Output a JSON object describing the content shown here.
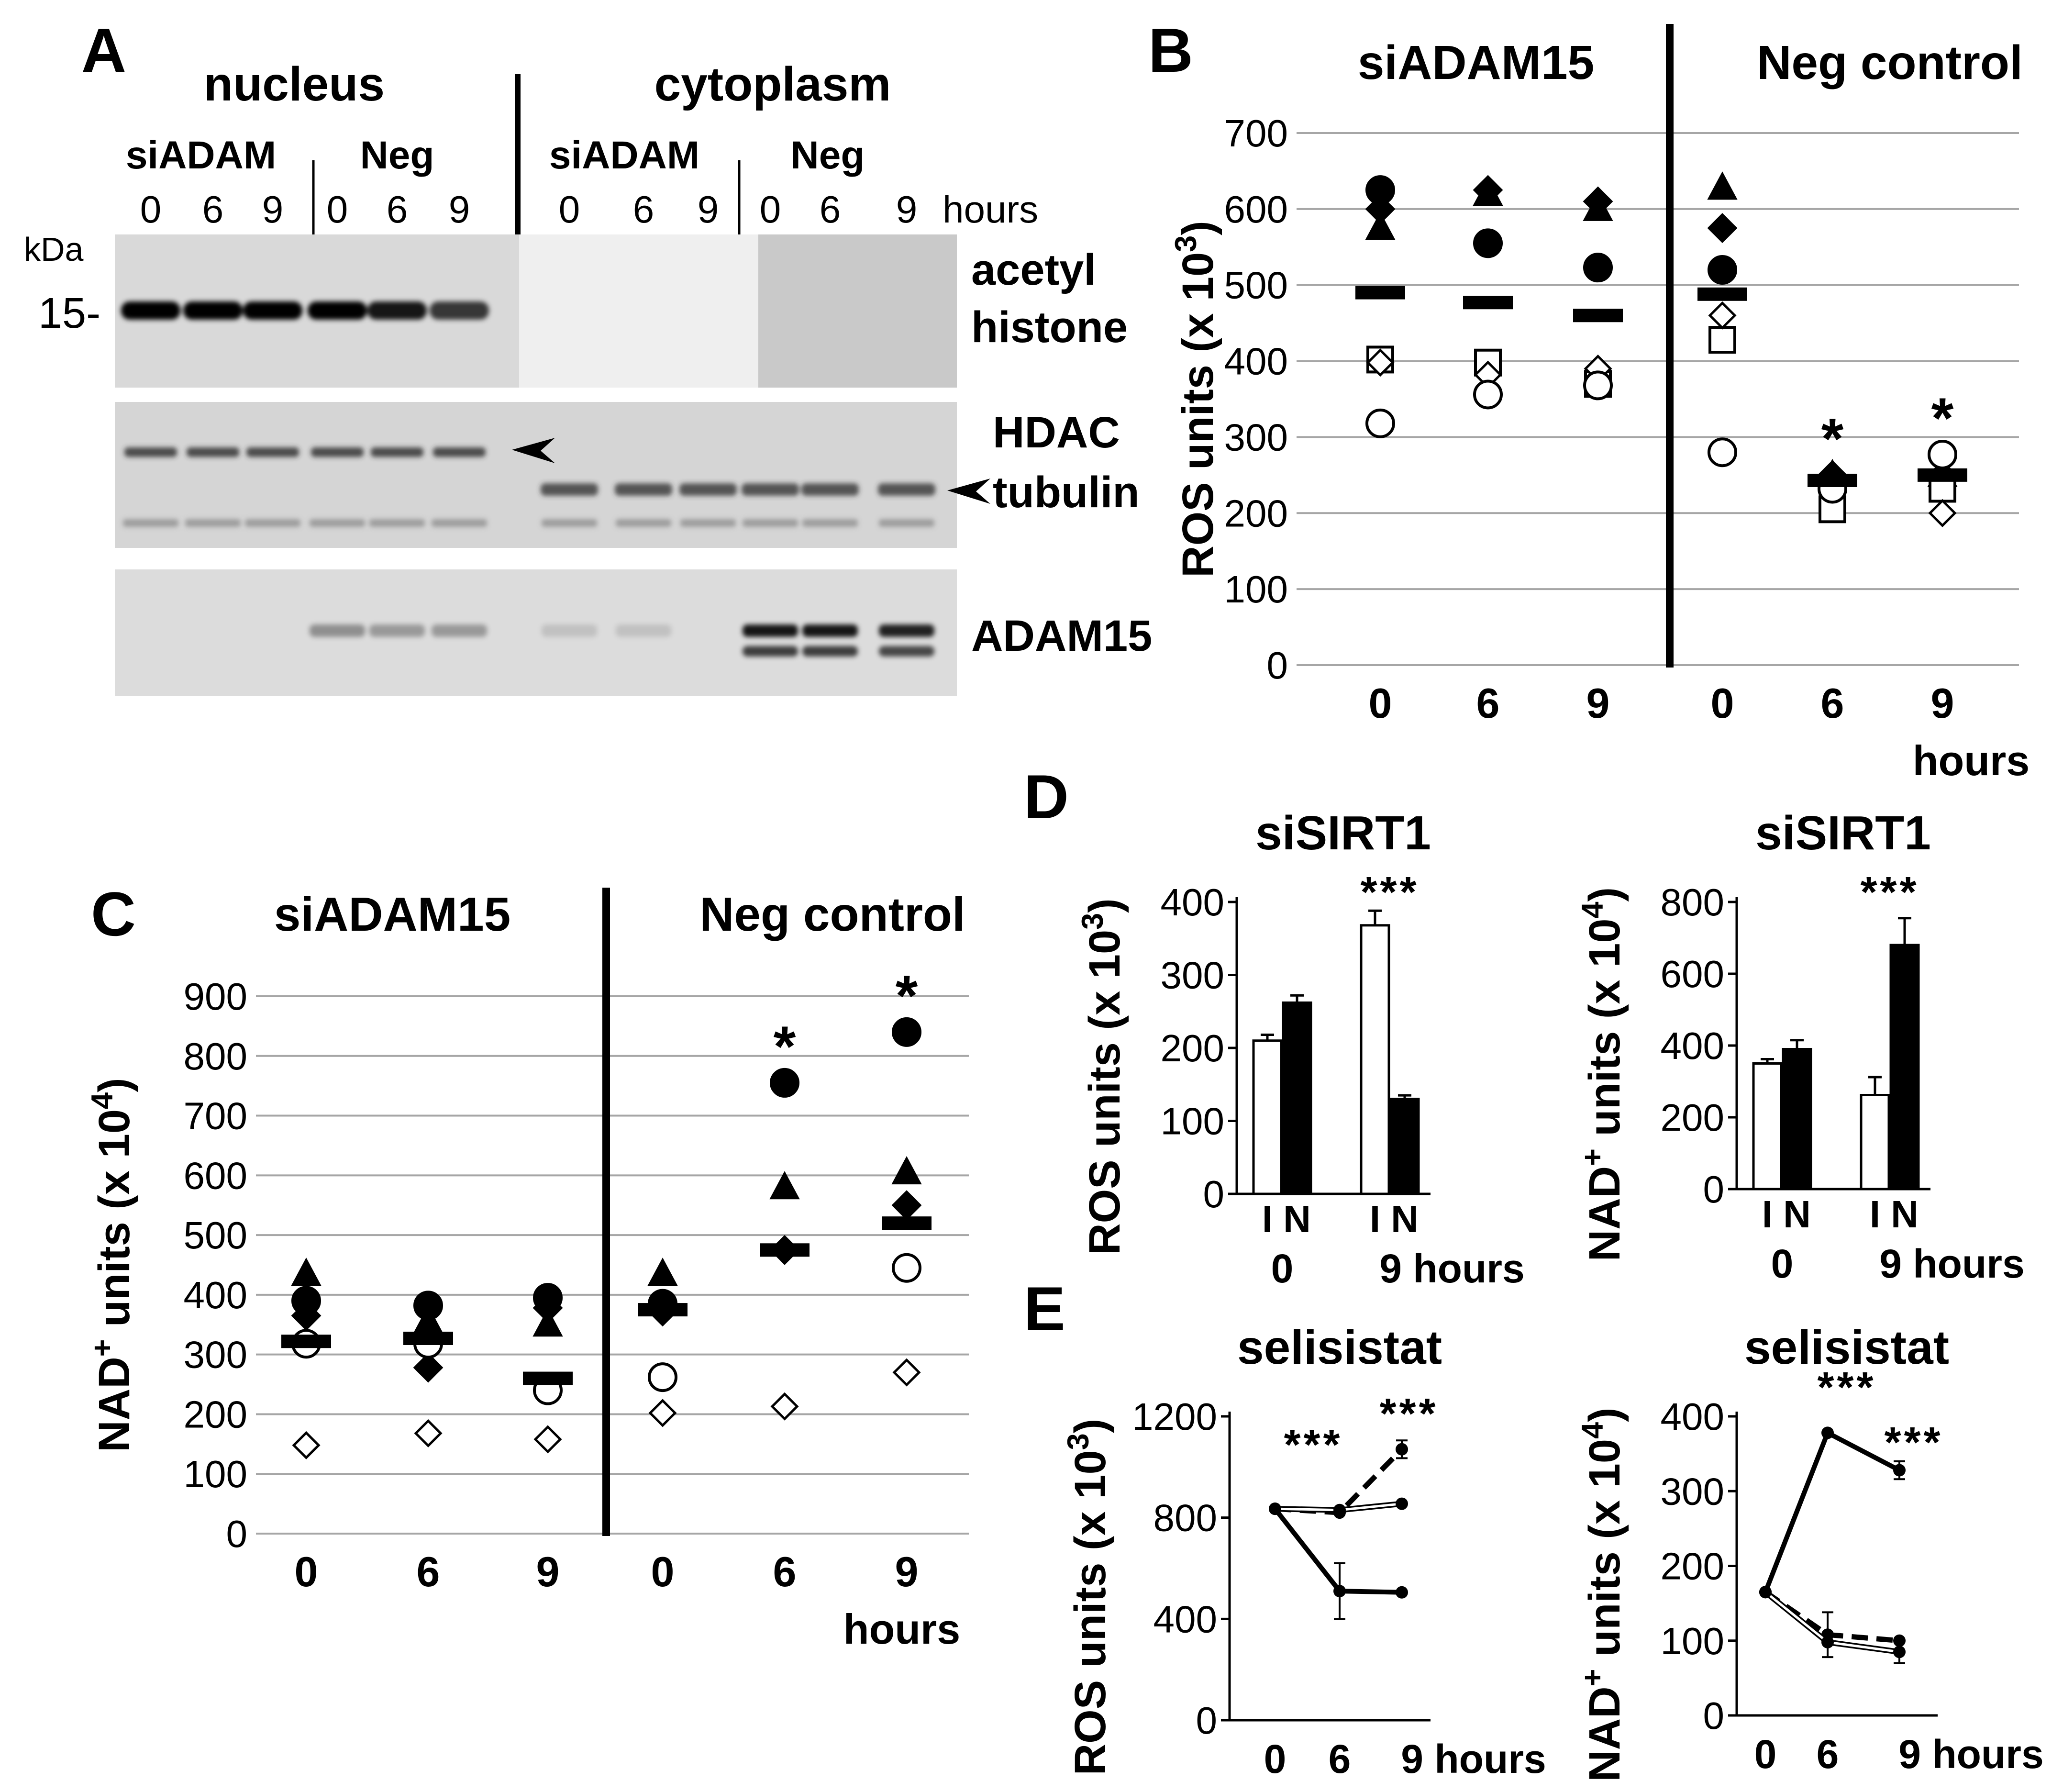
{
  "panel_a": {
    "letter": "A",
    "nucleus_label": "nucleus",
    "cytoplasm_label": "cytoplasm",
    "group_labels": [
      "siADAM",
      "Neg",
      "siADAM",
      "Neg"
    ],
    "lanes": [
      "0",
      "6",
      "9",
      "0",
      "6",
      "9",
      "0",
      "6",
      "9",
      "0",
      "6",
      "9"
    ],
    "hours_label": "hours",
    "kda_label": "kDa",
    "marker_label": "15-",
    "band_labels": {
      "acetyl": "acetyl",
      "histone": "histone",
      "hdac": "HDAC",
      "tubulin": "tubulin",
      "adam15": "ADAM15"
    }
  },
  "chart_data": [
    {
      "id": "B",
      "type": "scatter",
      "letter": "B",
      "ylabel_main": "ROS units (x 10",
      "ylabel_exp": "3",
      "ylabel_close": ")",
      "ylim": [
        0,
        700
      ],
      "yticks": [
        "0",
        "100",
        "200",
        "300",
        "400",
        "500",
        "600",
        "700"
      ],
      "categories": [
        "0",
        "6",
        "9",
        "0",
        "6",
        "9"
      ],
      "x_unit": "hours",
      "group_labels": [
        "siADAM15",
        "Neg control"
      ],
      "means": [
        490,
        477,
        460,
        488,
        243,
        250
      ],
      "significance": [
        "",
        "",
        "",
        "",
        "*",
        "*"
      ],
      "series": [
        {
          "marker": "filled-circle",
          "values": [
            625,
            555,
            523,
            520,
            null,
            null
          ]
        },
        {
          "marker": "filled-diamond",
          "values": [
            600,
            625,
            610,
            575,
            250,
            250
          ]
        },
        {
          "marker": "filled-triangle",
          "values": [
            575,
            620,
            600,
            628,
            250,
            250
          ]
        },
        {
          "marker": "open-square",
          "values": [
            402,
            398,
            370,
            428,
            205,
            232
          ]
        },
        {
          "marker": "open-diamond",
          "values": [
            398,
            382,
            390,
            460,
            232,
            200
          ]
        },
        {
          "marker": "open-circle",
          "values": [
            318,
            356,
            368,
            280,
            232,
            277
          ]
        }
      ]
    },
    {
      "id": "C",
      "type": "scatter",
      "letter": "C",
      "ylabel_main": "NAD",
      "ylabel_sup": "+",
      "ylabel_units": " units (x 10",
      "ylabel_exp": "4",
      "ylabel_close": ")",
      "ylim": [
        0,
        900
      ],
      "yticks": [
        "0",
        "100",
        "200",
        "300",
        "400",
        "500",
        "600",
        "700",
        "800",
        "900"
      ],
      "categories": [
        "0",
        "6",
        "9",
        "0",
        "6",
        "9"
      ],
      "x_unit": "hours",
      "group_labels": [
        "siADAM15",
        "Neg control"
      ],
      "means": [
        322,
        327,
        260,
        375,
        475,
        520
      ],
      "significance": [
        "",
        "",
        "",
        "",
        "*",
        "*"
      ],
      "series": [
        {
          "marker": "filled-triangle",
          "values": [
            435,
            355,
            350,
            435,
            580,
            605
          ]
        },
        {
          "marker": "filled-circle",
          "values": [
            390,
            382,
            395,
            385,
            755,
            840
          ]
        },
        {
          "marker": "filled-diamond",
          "values": [
            365,
            278,
            378,
            372,
            475,
            550
          ]
        },
        {
          "marker": "open-circle",
          "values": [
            318,
            318,
            240,
            262,
            null,
            445
          ]
        },
        {
          "marker": "open-diamond",
          "values": [
            148,
            168,
            158,
            202,
            213,
            270
          ]
        }
      ]
    },
    {
      "id": "D-ROS",
      "type": "bar",
      "letter": "D",
      "title": "siSIRT1",
      "ylabel_main": "ROS units (x 10",
      "ylabel_exp": "3",
      "ylabel_close": ")",
      "ylim": [
        0,
        400
      ],
      "yticks": [
        "0",
        "100",
        "200",
        "300",
        "400"
      ],
      "bar_labels": [
        "I",
        "N"
      ],
      "groups": [
        "0",
        "9 hours"
      ],
      "series": [
        {
          "label": "I",
          "fill": "#ffffff",
          "values": [
            210,
            368
          ],
          "errors": [
            8,
            20
          ]
        },
        {
          "label": "N",
          "fill": "#000000",
          "values": [
            262,
            130
          ],
          "errors": [
            10,
            5
          ]
        }
      ],
      "significance": [
        "",
        "***"
      ]
    },
    {
      "id": "D-NAD",
      "type": "bar",
      "title": "siSIRT1",
      "ylabel_main": "NAD",
      "ylabel_sup": "+",
      "ylabel_units": " units (x 10",
      "ylabel_exp": "4",
      "ylabel_close": ")",
      "ylim": [
        0,
        800
      ],
      "yticks": [
        "0",
        "200",
        "400",
        "600",
        "800"
      ],
      "bar_labels": [
        "I",
        "N"
      ],
      "groups": [
        "0",
        "9 hours"
      ],
      "series": [
        {
          "label": "I",
          "fill": "#ffffff",
          "values": [
            350,
            262
          ],
          "errors": [
            12,
            50
          ]
        },
        {
          "label": "N",
          "fill": "#000000",
          "values": [
            390,
            680
          ],
          "errors": [
            25,
            75
          ]
        }
      ],
      "significance": [
        "",
        "***"
      ]
    },
    {
      "id": "E-ROS",
      "type": "line",
      "letter": "E",
      "title": "selisistat",
      "ylabel_main": "ROS units (x 10",
      "ylabel_exp": "3",
      "ylabel_close": ")",
      "ylim": [
        0,
        1200
      ],
      "yticks": [
        "0",
        "400",
        "800",
        "1200"
      ],
      "x": [
        "0",
        "6",
        "9 hours"
      ],
      "series": [
        {
          "style": "thick-solid",
          "values": [
            835,
            510,
            505
          ],
          "errors": [
            0,
            110,
            0
          ]
        },
        {
          "style": "dashed",
          "values": [
            835,
            820,
            1070
          ],
          "errors": [
            0,
            0,
            35
          ]
        },
        {
          "style": "thin-double",
          "values": [
            835,
            830,
            855
          ],
          "errors": [
            0,
            0,
            0
          ]
        }
      ],
      "significance": [
        {
          "text": "***",
          "x_index": 1
        },
        {
          "text": "***",
          "x_index": 2
        }
      ]
    },
    {
      "id": "E-NAD",
      "type": "line",
      "title": "selisistat",
      "ylabel_main": "NAD",
      "ylabel_sup": "+",
      "ylabel_units": " units (x 10",
      "ylabel_exp": "4",
      "ylabel_close": ")",
      "ylim": [
        0,
        400
      ],
      "yticks": [
        "0",
        "100",
        "200",
        "300",
        "400"
      ],
      "x": [
        "0",
        "6",
        "9 hours"
      ],
      "series": [
        {
          "style": "thick-solid",
          "values": [
            165,
            378,
            328
          ],
          "errors": [
            0,
            0,
            12
          ]
        },
        {
          "style": "dashed",
          "values": [
            165,
            108,
            100
          ],
          "errors": [
            0,
            30,
            0
          ]
        },
        {
          "style": "thin-double",
          "values": [
            165,
            98,
            85
          ],
          "errors": [
            0,
            0,
            15
          ]
        }
      ],
      "significance": [
        {
          "text": "***",
          "x_index": 1
        },
        {
          "text": "***",
          "x_index": 2
        }
      ]
    }
  ]
}
